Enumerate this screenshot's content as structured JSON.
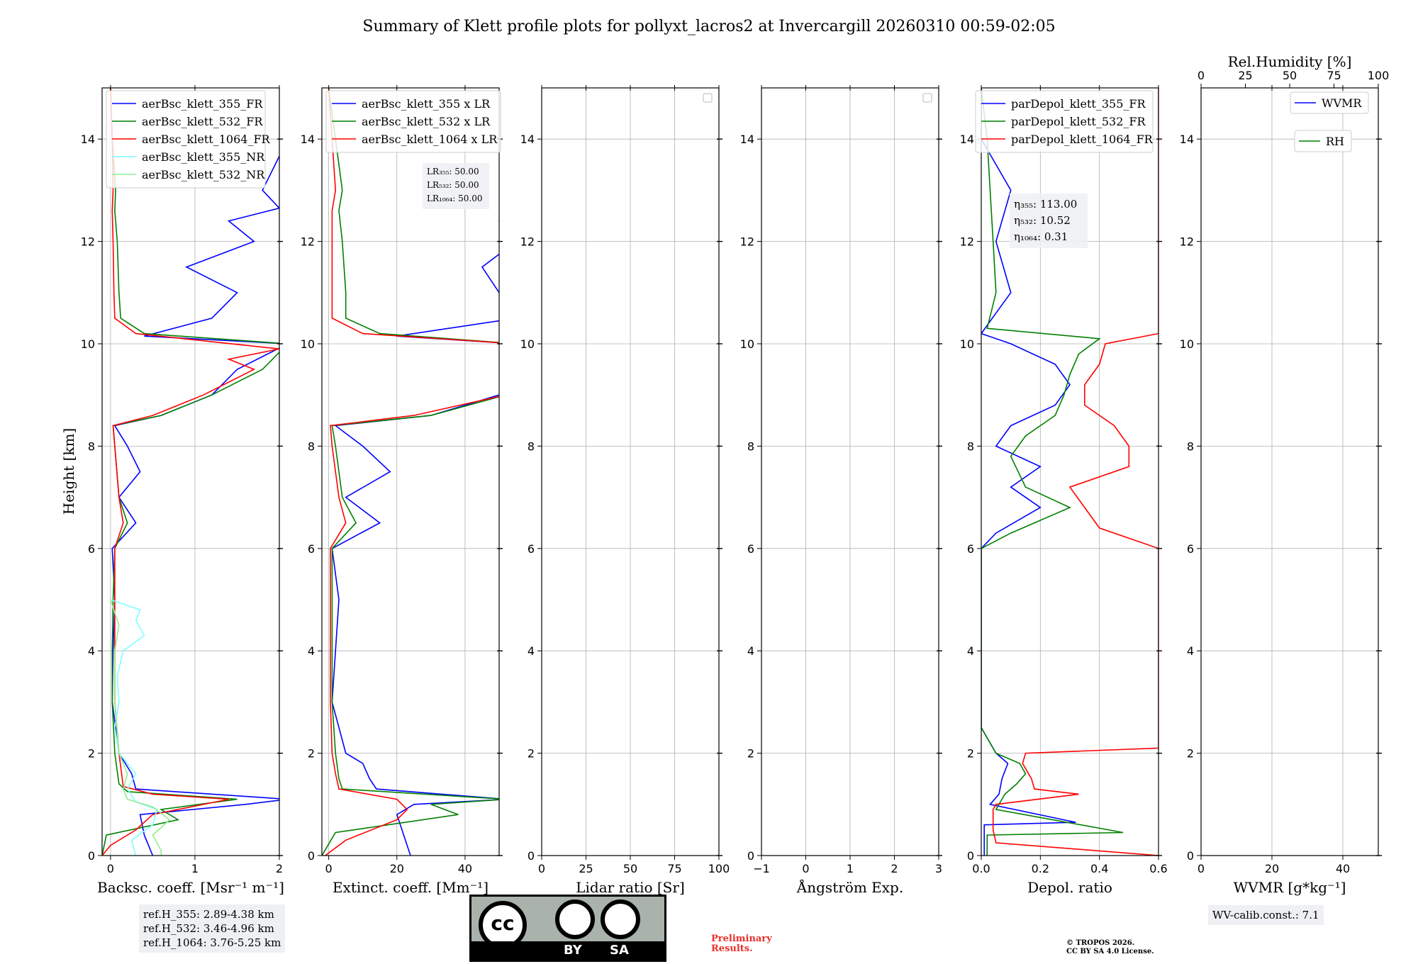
{
  "title": "Summary of Klett profile plots for pollyxt_lacros2 at Invercargill 20260310 00:59-02:05",
  "colors": {
    "blue": "#0000ff",
    "green": "#008000",
    "red": "#ff0000",
    "cyan": "#7fffff",
    "lightgreen": "#90ee90"
  },
  "chart_data": [
    {
      "type": "line",
      "name": "backscatter",
      "ylabel": "Height [km]",
      "xlabel": "Backsc. coeff. [Msr⁻¹ m⁻¹]",
      "xlim": [
        -0.1,
        2
      ],
      "ylim": [
        0,
        15
      ],
      "xticks": [
        0,
        1,
        2
      ],
      "xtick_labels": [
        "0",
        "1",
        "2"
      ],
      "yticks": [
        0,
        2,
        4,
        6,
        8,
        10,
        12,
        14
      ],
      "ytick_labels": [
        "0",
        "2",
        "4",
        "6",
        "8",
        "10",
        "12",
        "14"
      ],
      "legend": [
        "aerBsc_klett_355_FR",
        "aerBsc_klett_532_FR",
        "aerBsc_klett_1064_FR",
        "aerBsc_klett_355_NR",
        "aerBsc_klett_532_NR"
      ],
      "series": [
        {
          "name": "aerBsc_klett_355_FR",
          "color": "blue",
          "y": [
            0.0,
            0.4,
            0.8,
            1.0,
            1.1,
            1.3,
            1.6,
            2.0,
            3.0,
            4.0,
            5.0,
            6.0,
            6.5,
            7.0,
            7.5,
            8.0,
            8.4,
            8.6,
            9.0,
            9.5,
            10.0,
            10.15,
            10.5,
            11.0,
            11.5,
            12.0,
            12.4,
            12.65,
            13.0,
            14.0,
            15.0
          ],
          "x": [
            0.5,
            0.4,
            0.35,
            1.6,
            2.1,
            0.3,
            0.25,
            0.1,
            0.02,
            0.03,
            0.05,
            0.02,
            0.3,
            0.1,
            0.35,
            0.2,
            0.05,
            0.6,
            1.2,
            1.5,
            2.1,
            0.4,
            1.2,
            1.5,
            0.9,
            1.7,
            1.4,
            2.0,
            1.8,
            2.1,
            2.0
          ]
        },
        {
          "name": "aerBsc_klett_532_FR",
          "color": "green",
          "y": [
            0.0,
            0.4,
            0.7,
            0.9,
            1.1,
            1.25,
            1.4,
            2.0,
            3.0,
            4.0,
            5.0,
            6.0,
            6.5,
            7.0,
            8.0,
            8.4,
            8.6,
            9.0,
            9.5,
            10.0,
            10.2,
            10.5,
            11.0,
            12.0,
            12.6,
            13.0,
            13.5,
            14.0,
            15.0
          ],
          "x": [
            -0.1,
            -0.05,
            0.8,
            0.6,
            1.5,
            0.2,
            0.1,
            0.05,
            0.02,
            0.02,
            0.03,
            0.05,
            0.2,
            0.1,
            0.05,
            0.03,
            0.6,
            1.2,
            1.8,
            2.1,
            0.4,
            0.12,
            0.1,
            0.08,
            0.05,
            0.06,
            0.04,
            0.02,
            0.0
          ]
        },
        {
          "name": "aerBsc_klett_1064_FR",
          "color": "red",
          "y": [
            0.0,
            0.2,
            0.5,
            0.8,
            1.1,
            1.2,
            1.35,
            2.0,
            3.0,
            4.0,
            5.0,
            6.0,
            6.5,
            7.0,
            8.0,
            8.4,
            8.6,
            9.0,
            9.5,
            9.7,
            9.9,
            10.2,
            10.5,
            11.0,
            12.0,
            12.6,
            13.0,
            14.0,
            15.0
          ],
          "x": [
            -0.1,
            0.0,
            0.3,
            0.5,
            1.4,
            0.5,
            0.15,
            0.1,
            0.05,
            0.05,
            0.05,
            0.05,
            0.15,
            0.1,
            0.05,
            0.03,
            0.5,
            1.1,
            1.7,
            1.4,
            2.0,
            0.3,
            0.05,
            0.04,
            0.03,
            0.02,
            0.03,
            0.02,
            0.0
          ]
        },
        {
          "name": "aerBsc_klett_355_NR",
          "color": "cyan",
          "y": [
            0.0,
            0.3,
            0.6,
            0.9,
            1.05,
            1.3,
            1.6,
            2.0,
            2.5,
            3.0,
            3.5,
            4.0,
            4.3,
            4.6,
            4.8,
            5.0
          ],
          "x": [
            0.3,
            0.25,
            0.5,
            0.55,
            0.3,
            0.2,
            0.3,
            0.1,
            0.05,
            0.1,
            0.08,
            0.15,
            0.4,
            0.3,
            0.35,
            0.0
          ]
        },
        {
          "name": "aerBsc_klett_532_NR",
          "color": "lightgreen",
          "y": [
            0.0,
            0.1,
            0.4,
            0.7,
            0.95,
            1.1,
            1.3,
            1.6,
            2.0,
            3.0,
            4.0,
            4.5,
            5.0
          ],
          "x": [
            0.6,
            0.6,
            0.5,
            0.7,
            0.5,
            0.2,
            0.15,
            0.2,
            0.1,
            0.05,
            0.05,
            0.1,
            0.0
          ]
        }
      ],
      "annotations": []
    },
    {
      "type": "line",
      "name": "extinction",
      "xlabel": "Extinct. coeff. [Mm⁻¹]",
      "xlim": [
        -2,
        50
      ],
      "ylim": [
        0,
        15
      ],
      "xticks": [
        0,
        20,
        40
      ],
      "xtick_labels": [
        "0",
        "20",
        "40"
      ],
      "yticks": [
        0,
        2,
        4,
        6,
        8,
        10,
        12,
        14
      ],
      "ytick_labels": [
        "0",
        "2",
        "4",
        "6",
        "8",
        "10",
        "12",
        "14"
      ],
      "legend": [
        "aerBsc_klett_355 x LR",
        "aerBsc_klett_532 x LR",
        "aerBsc_klett_1064 x LR"
      ],
      "series": [
        {
          "name": "aerBsc_klett_355 x LR",
          "color": "blue",
          "y": [
            0.0,
            0.4,
            0.8,
            1.0,
            1.1,
            1.3,
            1.5,
            1.8,
            2.0,
            3.0,
            4.0,
            5.0,
            6.0,
            6.5,
            7.0,
            7.5,
            8.0,
            8.4,
            8.6,
            9.0,
            10.0,
            10.15,
            10.5,
            11.0,
            11.5,
            12.0,
            12.4,
            12.65,
            13.0,
            14.0,
            15.0
          ],
          "x": [
            24,
            22,
            20,
            25,
            52,
            14,
            12,
            10,
            5,
            1,
            2,
            3,
            1,
            15,
            5,
            18,
            10,
            2,
            30,
            50,
            55,
            20,
            55,
            50,
            45,
            55,
            50,
            55,
            52,
            55,
            55
          ]
        },
        {
          "name": "aerBsc_klett_532 x LR",
          "color": "green",
          "y": [
            0.0,
            0.45,
            0.8,
            1.0,
            1.1,
            1.3,
            1.5,
            2.0,
            3.0,
            4.0,
            5.0,
            6.0,
            6.5,
            7.0,
            8.0,
            8.4,
            8.6,
            9.0,
            10.0,
            10.2,
            10.5,
            11.0,
            12.0,
            12.6,
            13.0,
            14.0,
            15.0
          ],
          "x": [
            -2,
            2,
            38,
            30,
            52,
            4,
            3,
            2,
            1,
            1,
            1,
            1,
            8,
            4,
            2,
            1,
            30,
            52,
            55,
            15,
            5,
            5,
            4,
            3,
            4,
            2,
            0
          ]
        },
        {
          "name": "aerBsc_klett_1064 x LR",
          "color": "red",
          "y": [
            0.0,
            0.3,
            0.7,
            0.9,
            1.1,
            1.3,
            1.6,
            2.0,
            3.0,
            4.0,
            5.0,
            6.0,
            6.5,
            7.0,
            8.0,
            8.4,
            8.6,
            9.0,
            10.0,
            10.2,
            10.5,
            11.0,
            12.0,
            12.6,
            13.0,
            14.0,
            15.0
          ],
          "x": [
            -1,
            5,
            20,
            23,
            20,
            3,
            2,
            1,
            0.5,
            0.5,
            0.5,
            0.5,
            5,
            3,
            1,
            0.5,
            25,
            52,
            55,
            10,
            1,
            1,
            1,
            1,
            2,
            1,
            0
          ]
        }
      ],
      "annotations": [
        "LR₃₅₅: 50.00",
        "LR₅₃₂: 50.00",
        "LR₁₀₆₄: 50.00"
      ]
    },
    {
      "type": "line",
      "name": "lidar_ratio",
      "xlabel": "Lidar ratio [Sr]",
      "xlim": [
        0,
        100
      ],
      "ylim": [
        0,
        15
      ],
      "xticks": [
        0,
        25,
        50,
        75,
        100
      ],
      "xtick_labels": [
        "0",
        "25",
        "50",
        "75",
        "100"
      ],
      "yticks": [
        0,
        2,
        4,
        6,
        8,
        10,
        12,
        14
      ],
      "ytick_labels": [
        "0",
        "2",
        "4",
        "6",
        "8",
        "10",
        "12",
        "14"
      ],
      "legend": [],
      "series": [],
      "annotations": []
    },
    {
      "type": "line",
      "name": "angstrom",
      "xlabel": "Ångström Exp.",
      "xlim": [
        -1,
        3
      ],
      "ylim": [
        0,
        15
      ],
      "xticks": [
        -1,
        0,
        1,
        2,
        3
      ],
      "xtick_labels": [
        "−1",
        "0",
        "1",
        "2",
        "3"
      ],
      "yticks": [
        0,
        2,
        4,
        6,
        8,
        10,
        12,
        14
      ],
      "ytick_labels": [
        "0",
        "2",
        "4",
        "6",
        "8",
        "10",
        "12",
        "14"
      ],
      "legend": [],
      "series": [],
      "annotations": []
    },
    {
      "type": "line",
      "name": "depol",
      "xlabel": "Depol. ratio",
      "xlim": [
        0,
        0.6
      ],
      "ylim": [
        0,
        15
      ],
      "xticks": [
        0,
        0.2,
        0.4,
        0.6
      ],
      "xtick_labels": [
        "0.0",
        "0.2",
        "0.4",
        "0.6"
      ],
      "yticks": [
        0,
        2,
        4,
        6,
        8,
        10,
        12,
        14
      ],
      "ytick_labels": [
        "0",
        "2",
        "4",
        "6",
        "8",
        "10",
        "12",
        "14"
      ],
      "legend": [
        "parDepol_klett_355_FR",
        "parDepol_klett_532_FR",
        "parDepol_klett_1064_FR"
      ],
      "series": [
        {
          "name": "parDepol_klett_355_FR",
          "color": "blue",
          "y": [
            0.0,
            0.6,
            0.65,
            1.0,
            1.2,
            1.5,
            1.8,
            2.0,
            2.5,
            5.0,
            6.0,
            6.3,
            6.8,
            7.2,
            7.6,
            8.0,
            8.4,
            8.8,
            9.2,
            9.6,
            10.0,
            10.2,
            10.6,
            11.0,
            12.0,
            13.0,
            14.0,
            15.0
          ],
          "x": [
            0.01,
            0.01,
            0.32,
            0.03,
            0.06,
            0.07,
            0.09,
            0.05,
            0.0,
            0.0,
            0.0,
            0.05,
            0.2,
            0.1,
            0.2,
            0.05,
            0.1,
            0.25,
            0.3,
            0.25,
            0.1,
            0.0,
            0.05,
            0.1,
            0.05,
            0.1,
            0.0,
            0.0
          ]
        },
        {
          "name": "parDepol_klett_532_FR",
          "color": "green",
          "y": [
            0.0,
            0.4,
            0.45,
            0.9,
            1.2,
            1.4,
            1.6,
            1.8,
            2.0,
            2.5,
            6.0,
            6.3,
            6.8,
            7.2,
            7.8,
            8.2,
            8.6,
            9.0,
            9.4,
            9.8,
            10.1,
            10.3,
            11.0,
            12.0,
            13.0,
            14.0,
            15.0
          ],
          "x": [
            0.02,
            0.02,
            0.48,
            0.05,
            0.08,
            0.12,
            0.15,
            0.13,
            0.05,
            0.0,
            0.0,
            0.1,
            0.3,
            0.15,
            0.1,
            0.15,
            0.25,
            0.28,
            0.3,
            0.33,
            0.4,
            0.02,
            0.05,
            0.04,
            0.03,
            0.02,
            0.0
          ]
        },
        {
          "name": "parDepol_klett_1064_FR",
          "color": "red",
          "y": [
            0.0,
            0.25,
            0.5,
            0.9,
            1.0,
            1.2,
            1.3,
            1.5,
            1.8,
            2.0,
            2.1,
            2.6,
            6.0,
            6.4,
            6.8,
            7.2,
            7.6,
            8.0,
            8.4,
            8.8,
            9.2,
            9.6,
            10.0,
            10.2,
            10.4,
            15.0
          ],
          "x": [
            0.6,
            0.05,
            0.04,
            0.04,
            0.05,
            0.33,
            0.18,
            0.17,
            0.14,
            0.15,
            0.6,
            0.6,
            0.6,
            0.4,
            0.35,
            0.3,
            0.5,
            0.5,
            0.45,
            0.35,
            0.35,
            0.4,
            0.42,
            0.6,
            0.6,
            0.6
          ]
        }
      ],
      "annotations": [
        "η₃₅₅: 113.00",
        "η₅₃₂: 10.52",
        "η₁₀₆₄: 0.31"
      ]
    },
    {
      "type": "line",
      "name": "wvmr",
      "xlabel": "WVMR [g*kg⁻¹]",
      "x2label": "Rel.Humidity [%]",
      "xlim": [
        0,
        50
      ],
      "x2lim": [
        0,
        100
      ],
      "ylim": [
        0,
        15
      ],
      "xticks": [
        0,
        20,
        40
      ],
      "xtick_labels": [
        "0",
        "20",
        "40"
      ],
      "x2ticks": [
        0,
        25,
        50,
        75,
        100
      ],
      "x2tick_labels": [
        "0",
        "25",
        "50",
        "75",
        "100"
      ],
      "yticks": [
        0,
        2,
        4,
        6,
        8,
        10,
        12,
        14
      ],
      "ytick_labels": [
        "0",
        "2",
        "4",
        "6",
        "8",
        "10",
        "12",
        "14"
      ],
      "legend": [
        "WVMR",
        "RH"
      ],
      "series": [],
      "annotations": []
    }
  ],
  "footer": {
    "ref_h": [
      "ref.H_355: 2.89-4.38 km",
      "ref.H_532: 3.46-4.96 km",
      "ref.H_1064: 3.76-5.25 km"
    ],
    "cc_by": "BY",
    "cc_sa": "SA",
    "preliminary": "Preliminary\nResults.",
    "copyright": [
      "© TROPOS 2026.",
      "CC BY SA 4.0 License."
    ],
    "wv_calib": "WV-calib.const.: 7.1"
  }
}
